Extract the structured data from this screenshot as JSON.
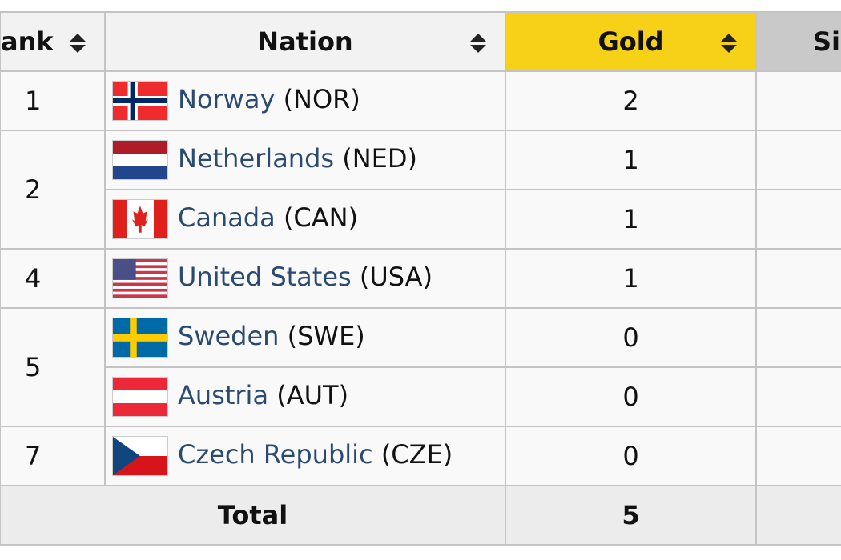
{
  "header": {
    "columns": [
      "ank",
      "Nation",
      "Gold",
      "Si"
    ]
  },
  "table": {
    "rows": [
      {
        "rank": "1",
        "nation": "Norway",
        "code": "(NOR)",
        "gold": "2"
      },
      {
        "rank": "2",
        "nation": "Netherlands",
        "code": "(NED)",
        "gold": "1"
      },
      {
        "nation": "Canada",
        "code": "(CAN)",
        "gold": "1"
      },
      {
        "rank": "4",
        "nation": "United States",
        "code": "(USA)",
        "gold": "1"
      },
      {
        "rank": "5",
        "nation": "Sweden",
        "code": "(SWE)",
        "gold": "0"
      },
      {
        "nation": "Austria",
        "code": "(AUT)",
        "gold": "0"
      },
      {
        "rank": "7",
        "nation": "Czech Republic",
        "code": "(CZE)",
        "gold": "0"
      }
    ],
    "total": {
      "label": "Total",
      "gold": "5"
    }
  }
}
